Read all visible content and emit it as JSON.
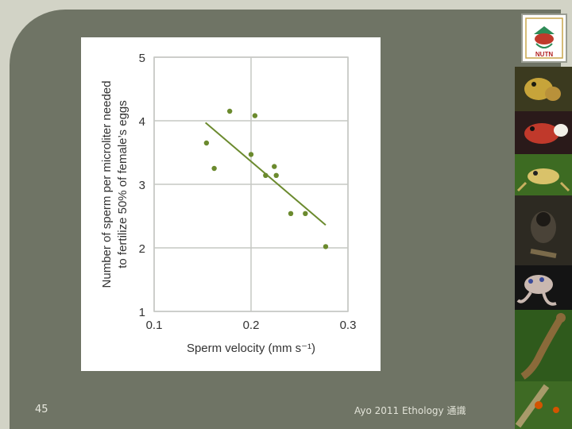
{
  "slide": {
    "number": "45",
    "footer": "Ayo 2011 Ethology 通識",
    "logo_text": "NUTN",
    "colors": {
      "background": "#6f7465",
      "frame": "#d2d3c6",
      "accent": "#6b8a2e"
    },
    "side_photos": [
      "frog-photo",
      "red-frog-photo",
      "tree-frog-photo",
      "marmoset-photo",
      "octopus-photo",
      "salamander-photo",
      "insect-photo"
    ]
  },
  "chart_data": {
    "type": "scatter",
    "xlabel": "Sperm velocity (mm s⁻¹)",
    "ylabel_line1": "Number of sperm per microliter needed",
    "ylabel_line2": "to fertilize 50% of female’s eggs",
    "xlim": [
      0.1,
      0.3
    ],
    "ylim": [
      1,
      5
    ],
    "x_ticks": [
      "0.1",
      "0.2",
      "0.3"
    ],
    "y_ticks": [
      "1",
      "2",
      "3",
      "4",
      "5"
    ],
    "grid": true,
    "point_color": "#6b8a2e",
    "points": [
      {
        "x": 0.154,
        "y": 3.65
      },
      {
        "x": 0.162,
        "y": 3.25
      },
      {
        "x": 0.178,
        "y": 4.15
      },
      {
        "x": 0.2,
        "y": 3.47
      },
      {
        "x": 0.204,
        "y": 4.08
      },
      {
        "x": 0.215,
        "y": 3.14
      },
      {
        "x": 0.224,
        "y": 3.28
      },
      {
        "x": 0.226,
        "y": 3.14
      },
      {
        "x": 0.241,
        "y": 2.54
      },
      {
        "x": 0.256,
        "y": 2.54
      },
      {
        "x": 0.277,
        "y": 2.02
      }
    ],
    "trendline": {
      "x": [
        0.153,
        0.277
      ],
      "y": [
        3.97,
        2.36
      ]
    }
  }
}
